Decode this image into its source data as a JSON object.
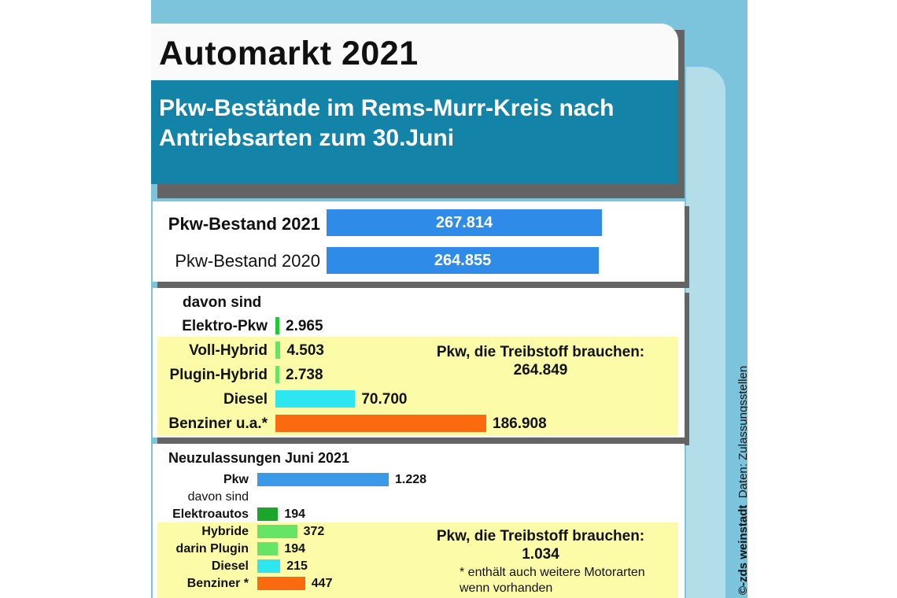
{
  "header": {
    "title": "Automarkt 2021",
    "subtitle_line1": "Pkw-Bestände im Rems-Murr-Kreis nach",
    "subtitle_line2": "Antriebsarten zum 30.Juni"
  },
  "colors": {
    "background": "#7cc4dc",
    "subtitle_band": "#1383a8",
    "highlight": "#fcfca8",
    "bestand_bars": "#2f8be8",
    "elektro": "#22c833",
    "hybrid": "#66e466",
    "diesel": "#2ee6f0",
    "benziner": "#fb6a0f",
    "neu_pkw": "#3a9ae8",
    "neu_elektro": "#1ba52a"
  },
  "chart_data": [
    {
      "type": "bar",
      "orientation": "horizontal",
      "categories": [
        "Pkw-Bestand 2021",
        "Pkw-Bestand 2020"
      ],
      "values": [
        267814,
        264855
      ],
      "value_labels": [
        "267.814",
        "264.855"
      ]
    },
    {
      "type": "bar",
      "orientation": "horizontal",
      "title": "davon sind",
      "categories": [
        "Elektro-Pkw",
        "Voll-Hybrid",
        "Plugin-Hybrid",
        "Diesel",
        "Benziner u.a.*"
      ],
      "values": [
        2965,
        4503,
        2738,
        70700,
        186908
      ],
      "value_labels": [
        "2.965",
        "4.503",
        "2.738",
        "70.700",
        "186.908"
      ],
      "annotation": {
        "text": "Pkw, die Treibstoff brauchen:",
        "value": "264.849"
      }
    },
    {
      "type": "bar",
      "orientation": "horizontal",
      "title": "Neuzulassungen Juni 2021",
      "categories": [
        "Pkw",
        "Elektroautos",
        "Hybride",
        "darin Plugin",
        "Diesel",
        "Benziner *"
      ],
      "values": [
        1228,
        194,
        372,
        194,
        215,
        447
      ],
      "value_labels": [
        "1.228",
        "194",
        "372",
        "194",
        "215",
        "447"
      ],
      "subheading": "davon sind",
      "annotation": {
        "text": "Pkw, die Treibstoff brauchen:",
        "value": "1.034"
      }
    }
  ],
  "footnote": {
    "line1": "* enthält auch weitere Motorarten",
    "line2": "wenn vorhanden"
  },
  "credit": {
    "brand": "©-zds weinstadt",
    "source": "Daten: Zulassungsstellen"
  }
}
